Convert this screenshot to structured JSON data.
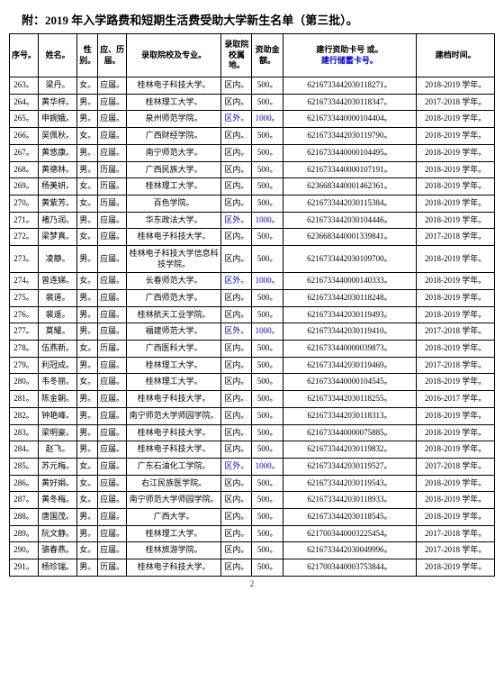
{
  "title": "附：2019 年入学路费和短期生活费受助大学新生名单（第三批）。",
  "page_number": "2",
  "columns": {
    "seq": "序号。",
    "name": "姓名。",
    "sex": "性别。",
    "hist": "应、历届。",
    "school": "录取院校及专业。",
    "loc": "录取院校属地。",
    "amt": "资助金额。",
    "card_line1": "建行资助卡号 或。",
    "card_line2": "建行储蓄卡号。",
    "year": "建档时间。"
  },
  "rows": [
    {
      "seq": "263。",
      "name": "梁丹。",
      "sex": "女。",
      "hist": "应届。",
      "school": "桂林电子科技大学。",
      "loc": "区内。",
      "amt": "500。",
      "card": "6216733442030118271。",
      "year": "2018-2019 学年。"
    },
    {
      "seq": "264。",
      "name": "黄华梓。",
      "sex": "男。",
      "hist": "应届。",
      "school": "桂林理工大学。",
      "loc": "区内。",
      "amt": "500。",
      "card": "6216733442030118347。",
      "year": "2017-2018 学年。"
    },
    {
      "seq": "265。",
      "name": "申婉娥。",
      "sex": "男。",
      "hist": "应届。",
      "school": "泉州师范学院。",
      "loc": "区外。",
      "amt": "1000。",
      "card": "6216733440000104404。",
      "year": "2018-2019 学年。",
      "loc_blue": true,
      "amt_blue": true
    },
    {
      "seq": "266。",
      "name": "吴佩秋。",
      "sex": "女。",
      "hist": "应届。",
      "school": "广西财经学院。",
      "loc": "区内。",
      "amt": "500。",
      "card": "6216733442030119790。",
      "year": "2018-2019 学年。"
    },
    {
      "seq": "267。",
      "name": "黄悠康。",
      "sex": "男。",
      "hist": "应届。",
      "school": "南宁师范大学。",
      "loc": "区内。",
      "amt": "500。",
      "card": "6216733440000104495。",
      "year": "2018-2019 学年。"
    },
    {
      "seq": "268。",
      "name": "黄德林。",
      "sex": "男。",
      "hist": "历届。",
      "school": "广西民族大学。",
      "loc": "区内。",
      "amt": "500。",
      "card": "6216733440000107191。",
      "year": "2018-2019 学年。"
    },
    {
      "seq": "269。",
      "name": "杨美妍。",
      "sex": "女。",
      "hist": "历届。",
      "school": "桂林理工大学。",
      "loc": "区内。",
      "amt": "500。",
      "card": "6236683440001462361。",
      "year": "2018-2019 学年。"
    },
    {
      "seq": "270。",
      "name": "黄紫芳。",
      "sex": "女。",
      "hist": "历届。",
      "school": "百色学院。",
      "loc": "区内。",
      "amt": "500。",
      "card": "6216733442030115384。",
      "year": "2018-2019 学年。"
    },
    {
      "seq": "271。",
      "name": "褚乃润。",
      "sex": "男。",
      "hist": "应届。",
      "school": "华东政法大学。",
      "loc": "区外。",
      "amt": "1000。",
      "card": "6216733442030104446。",
      "year": "2018-2019 学年。",
      "loc_blue": true,
      "amt_blue": true
    },
    {
      "seq": "272。",
      "name": "梁梦真。",
      "sex": "女。",
      "hist": "应届。",
      "school": "桂林电子科技大学。",
      "loc": "区内。",
      "amt": "500。",
      "card": "6236683440001339841。",
      "year": "2017-2018 学年。"
    },
    {
      "seq": "273。",
      "name": "凌静。",
      "sex": "男。",
      "hist": "应届。",
      "school": "桂林电子科技大学信息科技学院。",
      "loc": "区内。",
      "amt": "500。",
      "card": "6216733442030109700。",
      "year": "2018-2019 学年。"
    },
    {
      "seq": "274。",
      "name": "曾连娣。",
      "sex": "女。",
      "hist": "应届。",
      "school": "长春师范大学。",
      "loc": "区外。",
      "amt": "1000。",
      "card": "6216733440000140333。",
      "year": "2018-2019 学年。",
      "loc_blue": true,
      "amt_blue": true
    },
    {
      "seq": "275。",
      "name": "裴道。",
      "sex": "男。",
      "hist": "应届。",
      "school": "广西师范大学。",
      "loc": "区内。",
      "amt": "500。",
      "card": "6216733442030118248。",
      "year": "2018-2019 学年。"
    },
    {
      "seq": "276。",
      "name": "裴遥。",
      "sex": "男。",
      "hist": "应届。",
      "school": "桂林航天工业学院。",
      "loc": "区内。",
      "amt": "500。",
      "card": "6216733442030119493。",
      "year": "2018-2019 学年。"
    },
    {
      "seq": "277。",
      "name": "莫耀。",
      "sex": "男。",
      "hist": "应届。",
      "school": "福建师范大学。",
      "loc": "区外。",
      "amt": "1000。",
      "card": "6216733442030119410。",
      "year": "2017-2018 学年。",
      "loc_blue": true,
      "amt_blue": true
    },
    {
      "seq": "278。",
      "name": "伍燕新。",
      "sex": "女。",
      "hist": "历届。",
      "school": "广西医科大学。",
      "loc": "区内。",
      "amt": "500。",
      "card": "6216733440000039873。",
      "year": "2018-2019 学年。"
    },
    {
      "seq": "279。",
      "name": "利冠成。",
      "sex": "男。",
      "hist": "应届。",
      "school": "桂林理工大学。",
      "loc": "区内。",
      "amt": "500。",
      "card": "6216733442030119469。",
      "year": "2017-2018 学年。"
    },
    {
      "seq": "280。",
      "name": "韦冬丽。",
      "sex": "女。",
      "hist": "应届。",
      "school": "桂林理工大学。",
      "loc": "区内。",
      "amt": "500。",
      "card": "6216733440000104545。",
      "year": "2018-2019 学年。"
    },
    {
      "seq": "281。",
      "name": "陈金朝。",
      "sex": "男。",
      "hist": "应届。",
      "school": "桂林电子科技大学。",
      "loc": "区内。",
      "amt": "500。",
      "card": "6216733442030118255。",
      "year": "2016-2017 学年。"
    },
    {
      "seq": "282。",
      "name": "钟艳峰。",
      "sex": "男。",
      "hist": "应届。",
      "school": "南宁师范大学师园学院。",
      "loc": "区内。",
      "amt": "500。",
      "card": "6216733442030118313。",
      "year": "2018-2019 学年。"
    },
    {
      "seq": "283。",
      "name": "梁明豪。",
      "sex": "男。",
      "hist": "应届。",
      "school": "桂林电子科技大学。",
      "loc": "区内。",
      "amt": "500。",
      "card": "6216733440000075885。",
      "year": "2018-2019 学年。"
    },
    {
      "seq": "284。",
      "name": "赵飞。",
      "sex": "男。",
      "hist": "应届。",
      "school": "桂林电子科技大学。",
      "loc": "区内。",
      "amt": "500。",
      "card": "6216733442030119832。",
      "year": "2018-2019 学年。"
    },
    {
      "seq": "285。",
      "name": "苏元梅。",
      "sex": "女。",
      "hist": "应届。",
      "school": "广东石油化工学院。",
      "loc": "区外。",
      "amt": "1000。",
      "card": "6216733442030119527。",
      "year": "2017-2018 学年。",
      "loc_blue": true,
      "amt_blue": true
    },
    {
      "seq": "286。",
      "name": "黄好娟。",
      "sex": "女。",
      "hist": "应届。",
      "school": "右江民族医学院。",
      "loc": "区内。",
      "amt": "500。",
      "card": "6216733442030119543。",
      "year": "2018-2019 学年。"
    },
    {
      "seq": "287。",
      "name": "黄冬梅。",
      "sex": "女。",
      "hist": "应届。",
      "school": "南宁师范大学师园学院。",
      "loc": "区内。",
      "amt": "500。",
      "card": "6216733442030118933。",
      "year": "2018-2019 学年。"
    },
    {
      "seq": "288。",
      "name": "唐国茂。",
      "sex": "男。",
      "hist": "应届。",
      "school": "广西大学。",
      "loc": "区内。",
      "amt": "500。",
      "card": "6216733442030118545。",
      "year": "2018-2019 学年。"
    },
    {
      "seq": "289。",
      "name": "阮文静。",
      "sex": "男。",
      "hist": "应届。",
      "school": "桂林理工大学。",
      "loc": "区内。",
      "amt": "500。",
      "card": "6217003440003225454。",
      "year": "2017-2018 学年。"
    },
    {
      "seq": "290。",
      "name": "骆春燕。",
      "sex": "女。",
      "hist": "应届。",
      "school": "桂林旅游学院。",
      "loc": "区内。",
      "amt": "500。",
      "card": "6216733442030049996。",
      "year": "2017-2018 学年。"
    },
    {
      "seq": "291。",
      "name": "杨珍瑞。",
      "sex": "男。",
      "hist": "历届。",
      "school": "桂林电子科技大学。",
      "loc": "区内。",
      "amt": "500。",
      "card": "6217003440003753844。",
      "year": "2018-2019 学年。"
    }
  ]
}
